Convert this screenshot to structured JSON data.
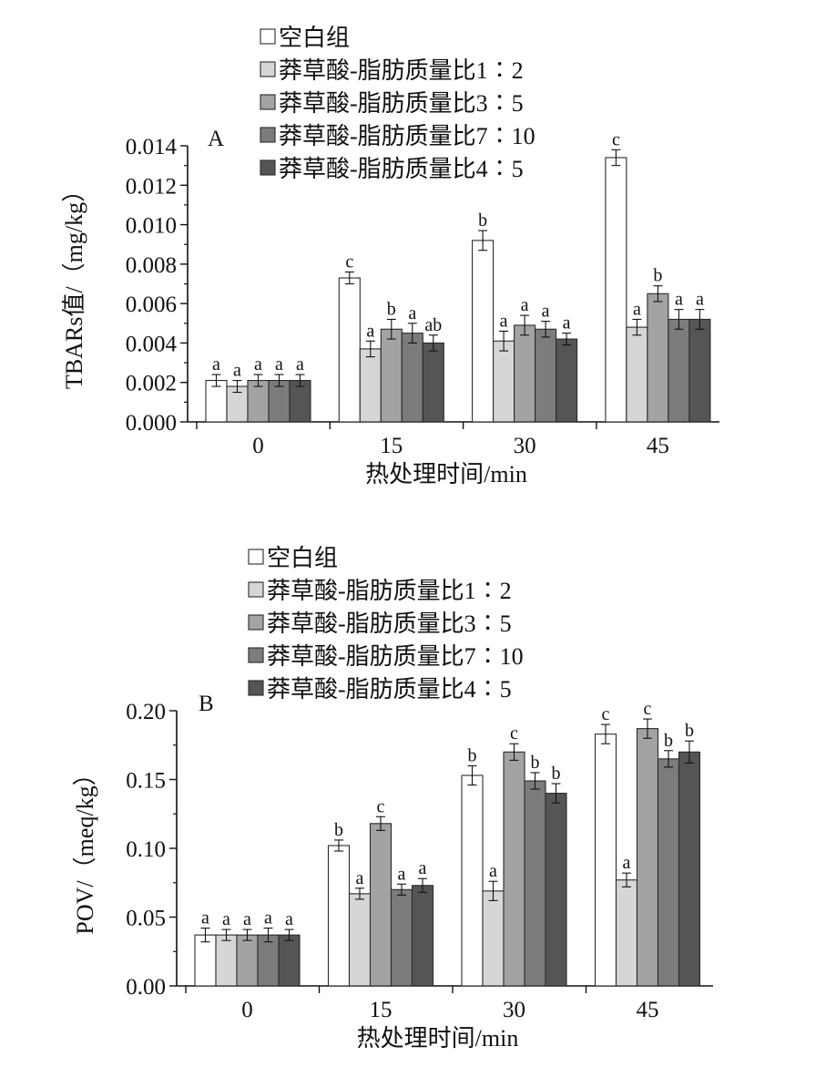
{
  "chart_data": [
    {
      "type": "bar",
      "panel_label": "A",
      "categories": [
        "0",
        "15",
        "30",
        "45"
      ],
      "xlabel": "热处理时间/min",
      "ylabel": "TBARs值/（mg/kg）",
      "ylim": [
        0,
        0.014
      ],
      "yticks": [
        "0.000",
        "0.002",
        "0.004",
        "0.006",
        "0.008",
        "0.010",
        "0.012",
        "0.014"
      ],
      "legend_position": "top",
      "series": [
        {
          "name": "空白组",
          "color": "#ffffff",
          "values": [
            0.0021,
            0.0073,
            0.0092,
            0.0134
          ],
          "errors": [
            0.0003,
            0.0003,
            0.0005,
            0.0004
          ],
          "letters": [
            "a",
            "c",
            "b",
            "c"
          ]
        },
        {
          "name": "莽草酸-脂肪质量比1∶2",
          "color": "#d6d6d6",
          "values": [
            0.0018,
            0.0037,
            0.0041,
            0.0048
          ],
          "errors": [
            0.0003,
            0.0004,
            0.0005,
            0.0004
          ],
          "letters": [
            "a",
            "a",
            "a",
            "a"
          ]
        },
        {
          "name": "莽草酸-脂肪质量比3∶5",
          "color": "#a3a3a3",
          "values": [
            0.0021,
            0.0047,
            0.0049,
            0.0065
          ],
          "errors": [
            0.0003,
            0.0005,
            0.0005,
            0.0004
          ],
          "letters": [
            "a",
            "b",
            "a",
            "b"
          ]
        },
        {
          "name": "莽草酸-脂肪质量比7∶10",
          "color": "#7c7c7c",
          "values": [
            0.0021,
            0.0045,
            0.0047,
            0.0052
          ],
          "errors": [
            0.0003,
            0.0005,
            0.0004,
            0.0005
          ],
          "letters": [
            "a",
            "a",
            "a",
            "a"
          ]
        },
        {
          "name": "莽草酸-脂肪质量比4∶5",
          "color": "#555555",
          "values": [
            0.0021,
            0.004,
            0.0042,
            0.0052
          ],
          "errors": [
            0.0003,
            0.0004,
            0.0003,
            0.0005
          ],
          "letters": [
            "a",
            "ab",
            "a",
            "a"
          ]
        }
      ]
    },
    {
      "type": "bar",
      "panel_label": "B",
      "categories": [
        "0",
        "15",
        "30",
        "45"
      ],
      "xlabel": "热处理时间/min",
      "ylabel": "POV/（meq/kg）",
      "ylim": [
        0,
        0.2
      ],
      "yticks": [
        "0.00",
        "0.05",
        "0.10",
        "0.15",
        "0.20"
      ],
      "legend_position": "top",
      "series": [
        {
          "name": "空白组",
          "color": "#ffffff",
          "values": [
            0.037,
            0.102,
            0.153,
            0.183
          ],
          "errors": [
            0.005,
            0.004,
            0.007,
            0.007
          ],
          "letters": [
            "a",
            "b",
            "b",
            "c"
          ]
        },
        {
          "name": "莽草酸-脂肪质量比1∶2",
          "color": "#d6d6d6",
          "values": [
            0.037,
            0.067,
            0.069,
            0.077
          ],
          "errors": [
            0.004,
            0.004,
            0.007,
            0.005
          ],
          "letters": [
            "a",
            "a",
            "a",
            "a"
          ]
        },
        {
          "name": "莽草酸-脂肪质量比3∶5",
          "color": "#a3a3a3",
          "values": [
            0.037,
            0.118,
            0.17,
            0.187
          ],
          "errors": [
            0.004,
            0.005,
            0.006,
            0.007
          ],
          "letters": [
            "a",
            "c",
            "c",
            "c"
          ]
        },
        {
          "name": "莽草酸-脂肪质量比7∶10",
          "color": "#7c7c7c",
          "values": [
            0.037,
            0.07,
            0.149,
            0.165
          ],
          "errors": [
            0.005,
            0.004,
            0.006,
            0.006
          ],
          "letters": [
            "a",
            "a",
            "b",
            "b"
          ]
        },
        {
          "name": "莽草酸-脂肪质量比4∶5",
          "color": "#555555",
          "values": [
            0.037,
            0.073,
            0.14,
            0.17
          ],
          "errors": [
            0.004,
            0.005,
            0.007,
            0.008
          ],
          "letters": [
            "a",
            "a",
            "b",
            "b"
          ]
        }
      ]
    }
  ]
}
